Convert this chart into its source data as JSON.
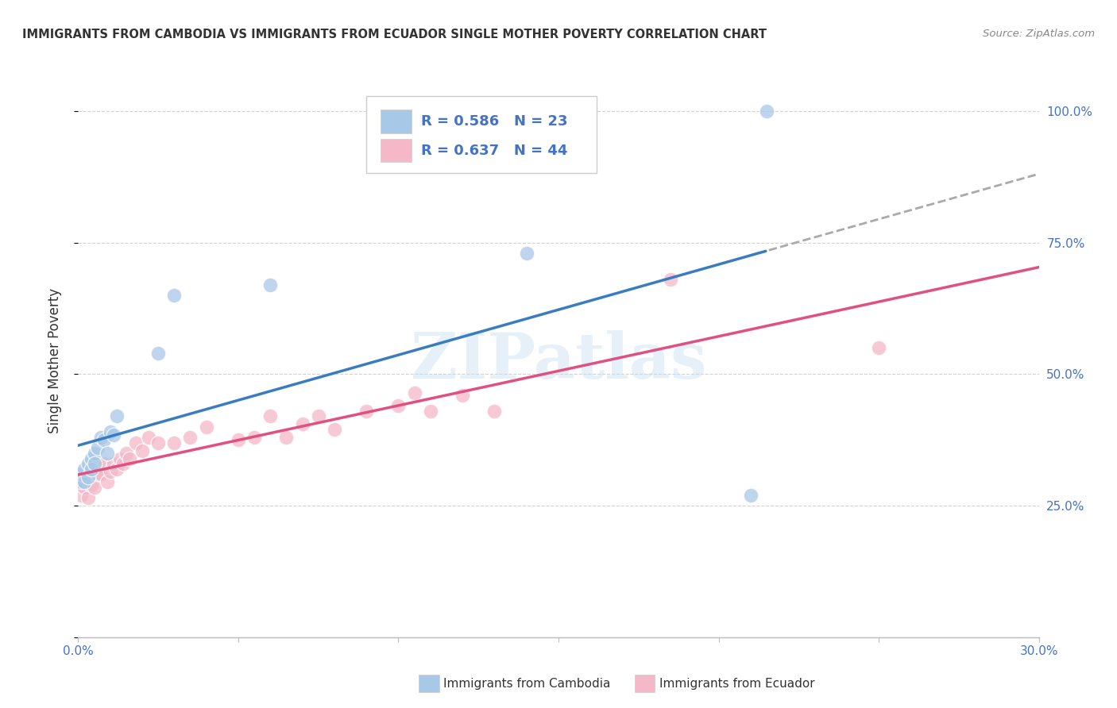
{
  "title": "IMMIGRANTS FROM CAMBODIA VS IMMIGRANTS FROM ECUADOR SINGLE MOTHER POVERTY CORRELATION CHART",
  "source": "Source: ZipAtlas.com",
  "ylabel": "Single Mother Poverty",
  "watermark": "ZIPatlas",
  "blue_color": "#a8c8e8",
  "pink_color": "#f4b8c8",
  "blue_line_color": "#3a7cc0",
  "pink_line_color": "#e05080",
  "dashed_line_color": "#aaaaaa",
  "background_color": "#ffffff",
  "grid_color": "#cccccc",
  "text_blue": "#4472c4",
  "text_dark": "#333333",
  "legend_blue_label": "R = 0.586   N = 23",
  "legend_pink_label": "R = 0.637   N = 44",
  "cambodia_x": [
    0.001,
    0.001,
    0.002,
    0.002,
    0.003,
    0.003,
    0.004,
    0.004,
    0.005,
    0.005,
    0.006,
    0.007,
    0.008,
    0.009,
    0.01,
    0.011,
    0.012,
    0.025,
    0.03,
    0.06,
    0.14,
    0.21,
    0.215
  ],
  "cambodia_y": [
    0.295,
    0.31,
    0.295,
    0.32,
    0.305,
    0.33,
    0.34,
    0.32,
    0.35,
    0.33,
    0.36,
    0.38,
    0.375,
    0.35,
    0.39,
    0.385,
    0.42,
    0.54,
    0.65,
    0.67,
    0.73,
    0.27,
    1.0
  ],
  "ecuador_x": [
    0.001,
    0.001,
    0.002,
    0.002,
    0.003,
    0.003,
    0.004,
    0.004,
    0.005,
    0.005,
    0.006,
    0.006,
    0.007,
    0.008,
    0.009,
    0.01,
    0.011,
    0.012,
    0.013,
    0.014,
    0.015,
    0.016,
    0.018,
    0.02,
    0.022,
    0.025,
    0.03,
    0.035,
    0.04,
    0.05,
    0.055,
    0.06,
    0.065,
    0.07,
    0.075,
    0.08,
    0.09,
    0.1,
    0.105,
    0.11,
    0.12,
    0.13,
    0.185,
    0.25
  ],
  "ecuador_y": [
    0.27,
    0.29,
    0.3,
    0.285,
    0.3,
    0.265,
    0.305,
    0.29,
    0.31,
    0.285,
    0.31,
    0.33,
    0.31,
    0.33,
    0.295,
    0.315,
    0.33,
    0.32,
    0.34,
    0.33,
    0.35,
    0.34,
    0.37,
    0.355,
    0.38,
    0.37,
    0.37,
    0.38,
    0.4,
    0.375,
    0.38,
    0.42,
    0.38,
    0.405,
    0.42,
    0.395,
    0.43,
    0.44,
    0.465,
    0.43,
    0.46,
    0.43,
    0.68,
    0.55
  ],
  "xlim": [
    0,
    0.3
  ],
  "ylim": [
    0,
    1.05
  ],
  "xticks": [
    0.0,
    0.05,
    0.1,
    0.15,
    0.2,
    0.25,
    0.3
  ],
  "yticks": [
    0.0,
    0.25,
    0.5,
    0.75,
    1.0
  ]
}
